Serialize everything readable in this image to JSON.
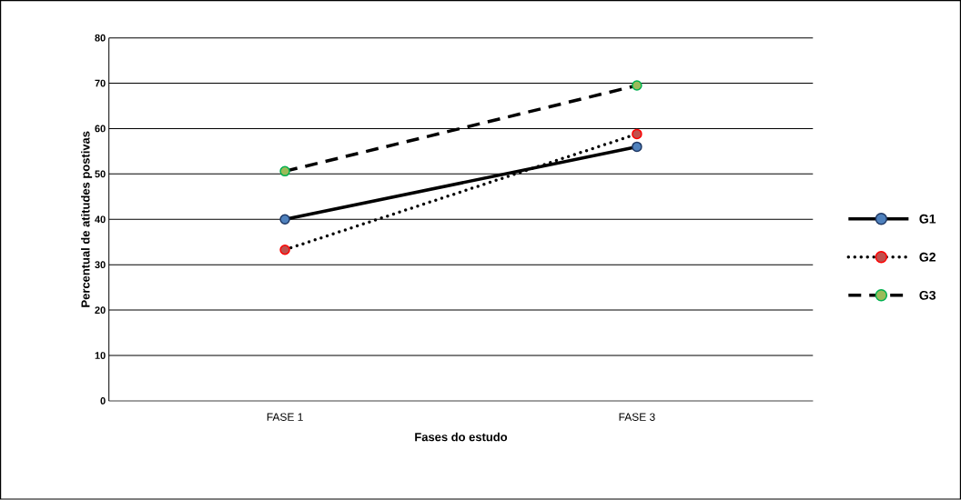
{
  "chart_data": {
    "type": "line",
    "xlabel": "Fases do estudo",
    "ylabel": "Percentual de atitudes postivas",
    "categories": [
      "FASE 1",
      "FASE 3"
    ],
    "series": [
      {
        "name": "G1",
        "color": "#000000",
        "colors": [
          "#4f81bd",
          "#4f81bd"
        ],
        "line_style": "solid",
        "values": [
          40,
          56
        ]
      },
      {
        "name": "G2",
        "color": "#000000",
        "colors": [
          "#c0504d",
          "#c0504d"
        ],
        "line_style": "dotted",
        "values": [
          33.3,
          58.8
        ]
      },
      {
        "name": "G3",
        "color": "#000000",
        "colors": [
          "#9bbb59",
          "#9bbb59"
        ],
        "line_style": "dashed",
        "values": [
          50.6,
          69.5
        ]
      }
    ],
    "ylim": [
      0,
      80
    ],
    "yticks": [
      0,
      10,
      20,
      30,
      40,
      50,
      60,
      70,
      80
    ],
    "grid": "y",
    "legend": "right",
    "marker": "circle"
  }
}
